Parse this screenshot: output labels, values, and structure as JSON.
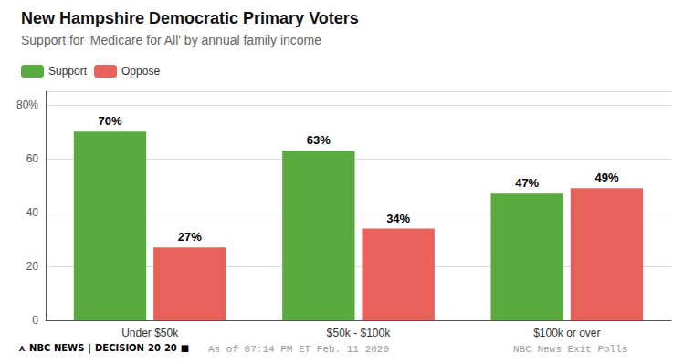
{
  "chart_data": {
    "type": "bar",
    "title": "New Hampshire Democratic Primary Voters",
    "subtitle": "Support for 'Medicare for All' by annual family income",
    "categories": [
      "Under $50k",
      "$50k - $100k",
      "$100k or over"
    ],
    "series": [
      {
        "name": "Support",
        "color": "#5aab3f",
        "values": [
          70,
          63,
          47
        ],
        "value_labels": [
          "70%",
          "63%",
          "47%"
        ]
      },
      {
        "name": "Oppose",
        "color": "#e8615a",
        "values": [
          27,
          34,
          49
        ],
        "value_labels": [
          "27%",
          "34%",
          "49%"
        ]
      }
    ],
    "ylim": [
      0,
      85
    ],
    "yticks": [
      0,
      20,
      40,
      60,
      {
        "value": 80,
        "label": "80%"
      }
    ],
    "grid": true,
    "legend": "upper left",
    "data_labels": true,
    "annotations": [
      {
        "text": "⋏",
        "color": "#000000"
      },
      {
        "text": "NBC NEWS",
        "color": "#000000"
      },
      {
        "text": "|",
        "color": "#00aaff"
      },
      {
        "text": "DECISION",
        "color": "#1a5fb4"
      },
      {
        "text": "20",
        "color": "#cc0000"
      },
      {
        "text": "20",
        "color": "#1a5fb4"
      },
      {
        "text": "■",
        "color": "#cc0000"
      },
      {
        "text": "As of 07:14 PM ET Feb. 11 2020",
        "color": "#999999"
      },
      {
        "text": "NBC News Exit Polls",
        "color": "#999999"
      }
    ]
  }
}
